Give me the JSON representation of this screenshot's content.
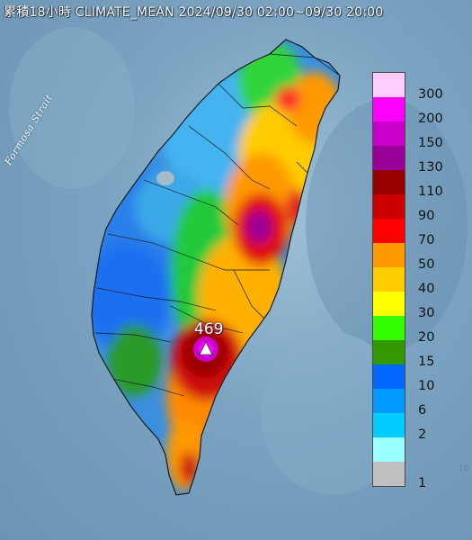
{
  "title": "累積18小時 CLIMATE_MEAN 2024/09/30 02:00~09/30 20:00",
  "strait_label": "Formosa Strait",
  "peak": {
    "label": "469"
  },
  "corner_mark": "10",
  "legend": [
    {
      "label": "300",
      "color": "#ffccff"
    },
    {
      "label": "200",
      "color": "#ff00ff"
    },
    {
      "label": "150",
      "color": "#cc00cc"
    },
    {
      "label": "130",
      "color": "#990099"
    },
    {
      "label": "110",
      "color": "#990000"
    },
    {
      "label": "90",
      "color": "#cc0000"
    },
    {
      "label": "70",
      "color": "#ff0000"
    },
    {
      "label": "50",
      "color": "#ff9900"
    },
    {
      "label": "40",
      "color": "#ffcc00"
    },
    {
      "label": "30",
      "color": "#ffff00"
    },
    {
      "label": "20",
      "color": "#33ff00"
    },
    {
      "label": "15",
      "color": "#339900"
    },
    {
      "label": "10",
      "color": "#0066ff"
    },
    {
      "label": "6",
      "color": "#0099ff"
    },
    {
      "label": "2",
      "color": "#00ccff"
    },
    {
      "label": "",
      "color": "#99ffff"
    },
    {
      "label": "1",
      "color": "#c0c0c0"
    }
  ]
}
